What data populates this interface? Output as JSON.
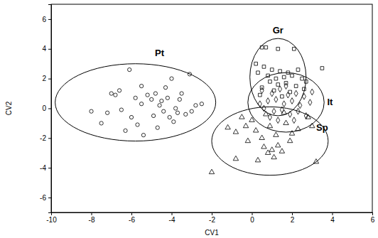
{
  "chart_data": {
    "type": "scatter",
    "x_label": "CV1",
    "y_label": "CV2",
    "xlim": [
      -10,
      6
    ],
    "ylim": [
      -7,
      7
    ],
    "xticks": [
      -10,
      -8,
      -6,
      -4,
      -2,
      0,
      2,
      4,
      6
    ],
    "yticks": [
      -6,
      -4,
      -2,
      0,
      2,
      4,
      6
    ],
    "series": [
      {
        "name": "Pt",
        "color": "#000000",
        "marker": "circle",
        "x": [
          -8,
          -7.5,
          -7.2,
          -7.0,
          -6.8,
          -6.5,
          -6.3,
          -6.1,
          -6.0,
          -5.7,
          -5.5,
          -5.5,
          -5.4,
          -5.2,
          -5.0,
          -4.9,
          -4.8,
          -4.6,
          -4.5,
          -4.4,
          -4.3,
          -4.2,
          -4.0,
          -3.9,
          -3.8,
          -3.7,
          -3.5,
          -3.3,
          -3.1,
          -3.0,
          -2.8,
          -2.5,
          -4.7,
          -5.8,
          -4.1,
          -3.6,
          -6.6
        ],
        "values": [
          -0.2,
          -1.0,
          -0.3,
          1.0,
          0.9,
          -0.1,
          -1.5,
          2.6,
          -0.6,
          -1.1,
          1.5,
          0.3,
          -1.8,
          0.9,
          0.6,
          -0.5,
          1.0,
          0.2,
          0.5,
          -0.2,
          1.4,
          0.7,
          2.0,
          -0.9,
          0.0,
          -0.3,
          1.0,
          -0.4,
          2.3,
          -0.2,
          0.2,
          0.3,
          -1.3,
          0.7,
          -0.6,
          0.6,
          1.2
        ],
        "ellipse": {
          "cx": -5.8,
          "cy": 0.4,
          "rx": 4.0,
          "ry": 2.6
        }
      },
      {
        "name": "Gr",
        "color": "#000000",
        "marker": "square",
        "x": [
          0.2,
          0.5,
          0.7,
          1.3,
          2.1,
          0.6,
          1.0,
          1.4,
          1.8,
          2.3,
          0.8,
          1.2,
          1.6,
          2.0,
          2.5,
          0.9,
          1.3,
          1.7,
          2.2,
          0.5,
          1.1,
          1.9,
          3.5,
          0.4,
          1.5,
          2.6,
          0.3,
          2.7
        ],
        "values": [
          3.0,
          4.1,
          4.1,
          4.0,
          4.0,
          2.8,
          2.6,
          2.5,
          2.4,
          2.6,
          2.2,
          2.0,
          2.1,
          2.2,
          2.0,
          1.8,
          1.6,
          1.7,
          1.5,
          1.4,
          1.2,
          1.1,
          2.7,
          0.9,
          0.8,
          1.3,
          2.4,
          1.8
        ],
        "ellipse": {
          "cx": 1.3,
          "cy": 2.1,
          "rx": 1.4,
          "ry": 2.6
        }
      },
      {
        "name": "It",
        "color": "#000000",
        "marker": "diamond",
        "x": [
          0.5,
          1.0,
          1.4,
          1.8,
          2.2,
          2.6,
          0.8,
          1.2,
          1.6,
          2.0,
          2.4,
          2.9,
          0.6,
          1.1,
          1.5,
          1.9,
          2.3,
          0.9,
          1.3,
          2.7,
          0.4,
          1.7,
          3.0,
          2.1
        ],
        "values": [
          1.2,
          1.0,
          1.3,
          0.9,
          1.0,
          0.8,
          0.5,
          0.6,
          0.3,
          0.5,
          0.2,
          0.4,
          0.0,
          -0.2,
          -0.1,
          -0.4,
          -0.2,
          -0.6,
          -0.8,
          -0.5,
          0.3,
          1.5,
          1.1,
          -0.8
        ],
        "ellipse": {
          "cx": 1.7,
          "cy": 0.4,
          "rx": 1.9,
          "ry": 2.0
        }
      },
      {
        "name": "Sp",
        "color": "#000000",
        "marker": "triangle",
        "x": [
          -2,
          -1.2,
          -0.8,
          -0.5,
          -0.3,
          0.0,
          0.2,
          0.5,
          0.6,
          0.8,
          1.0,
          1.1,
          1.3,
          1.5,
          1.2,
          0.9,
          1.7,
          2.0,
          2.3,
          3.0,
          2.8,
          0.3,
          3.2,
          -0.2,
          1.9,
          0.7,
          -0.8,
          1.6
        ],
        "values": [
          -4.3,
          -1.3,
          -1.6,
          -0.6,
          -1.2,
          -0.8,
          -1.5,
          -2.0,
          -2.6,
          -3.0,
          -2.8,
          -3.3,
          -2.5,
          -2.9,
          -1.8,
          -1.2,
          -1.0,
          -1.7,
          -1.4,
          -1.2,
          -0.6,
          -3.5,
          -3.6,
          -2.2,
          -2.2,
          -0.4,
          -3.4,
          -0.3
        ],
        "ellipse": {
          "cx": 0.9,
          "cy": -2.2,
          "rx": 2.9,
          "ry": 2.3
        }
      }
    ]
  }
}
